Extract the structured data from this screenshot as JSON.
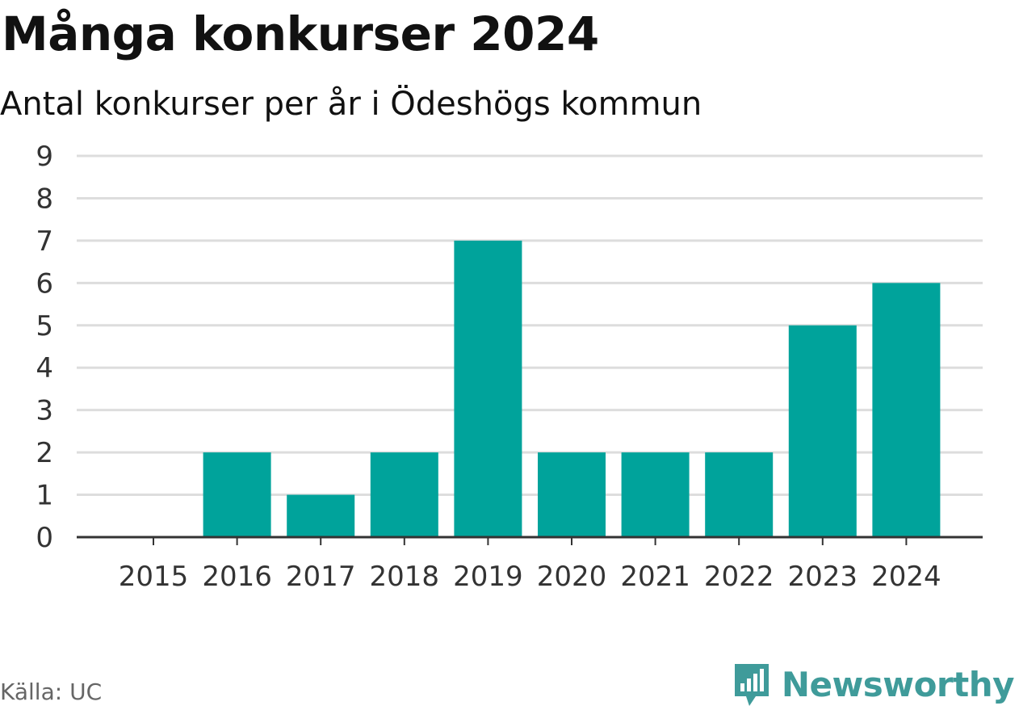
{
  "title": "Många konkurser 2024",
  "subtitle": "Antal konkurser per år i Ödeshögs kommun",
  "source": "Källa: UC",
  "brand": "Newsworthy",
  "colors": {
    "bar": "#00a39b",
    "grid": "#dddddd",
    "axis": "#333333",
    "brand": "#3f9b9a"
  },
  "chart_data": {
    "type": "bar",
    "categories": [
      "2015",
      "2016",
      "2017",
      "2018",
      "2019",
      "2020",
      "2021",
      "2022",
      "2023",
      "2024"
    ],
    "values": [
      0,
      2,
      1,
      2,
      7,
      2,
      2,
      2,
      5,
      6
    ],
    "ylim": [
      0,
      9
    ],
    "yticks": [
      0,
      1,
      2,
      3,
      4,
      5,
      6,
      7,
      8,
      9
    ],
    "grid": true,
    "legend": "none"
  }
}
